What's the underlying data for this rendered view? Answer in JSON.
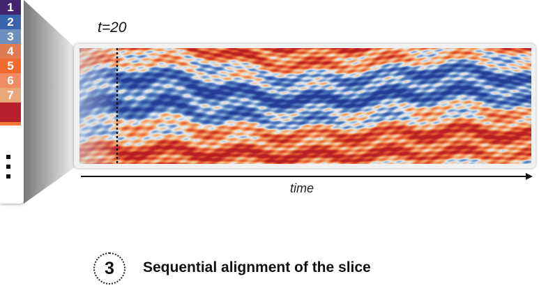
{
  "sidebar": {
    "cells": [
      {
        "label": "1",
        "color": "#45246f"
      },
      {
        "label": "2",
        "color": "#3a63ad"
      },
      {
        "label": "3",
        "color": "#6d8fbf"
      },
      {
        "label": "4",
        "color": "#e07a52"
      },
      {
        "label": "5",
        "color": "#ee6b2d"
      },
      {
        "label": "6",
        "color": "#f08c63"
      },
      {
        "label": "7",
        "color": "#e8a878"
      },
      {
        "label": "",
        "color": "#b81f2d"
      },
      {
        "label": "",
        "color": "#f47a3a"
      }
    ]
  },
  "plot": {
    "marker_label": "t=20",
    "axis_label": "time",
    "colors": {
      "blue": "#3a5bb0",
      "red": "#d8322b",
      "orange": "#f08c4a",
      "light": "#cfe0ee"
    }
  },
  "step": {
    "number": "3",
    "title": "Sequential alignment of the slice"
  }
}
